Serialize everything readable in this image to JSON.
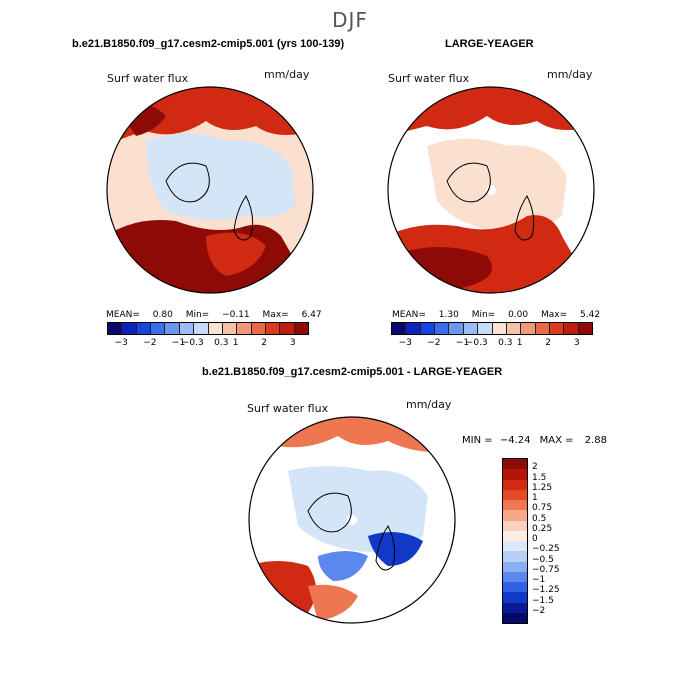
{
  "page": {
    "title": "DJF"
  },
  "panels": {
    "left": {
      "title": "b.e21.B1850.f09_g17.cesm2-cmip5.001 (yrs 100-139)",
      "variable": "Surf water flux",
      "units": "mm/day",
      "stats": {
        "mean_label": "MEAN=",
        "mean": "0.80",
        "min_label": "Min=",
        "min": "−0.11",
        "max_label": "Max=",
        "max": "6.47"
      }
    },
    "right": {
      "title": "LARGE-YEAGER",
      "variable": "Surf water flux",
      "units": "mm/day",
      "stats": {
        "mean_label": "MEAN=",
        "mean": "1.30",
        "min_label": "Min=",
        "min": "0.00",
        "max_label": "Max=",
        "max": "5.42"
      }
    },
    "diff": {
      "title": "b.e21.B1850.f09_g17.cesm2-cmip5.001 - LARGE-YEAGER",
      "variable": "Surf water flux",
      "units": "mm/day",
      "stats": {
        "min_label": "MIN =",
        "min": "−4.24",
        "max_label": "MAX =",
        "max": "2.88"
      }
    }
  },
  "colorbar_horizontal": {
    "colors": [
      "#08086e",
      "#0d22b8",
      "#1545e0",
      "#3a6ef0",
      "#6b96f2",
      "#9bbcf5",
      "#c6dcf8",
      "#fbe3d4",
      "#f6c3a8",
      "#f29a78",
      "#eb6a45",
      "#dd3a20",
      "#c01c10",
      "#8e0a06"
    ],
    "tick_labels": [
      "−3",
      "−2",
      "−1",
      "−0.3",
      "0.3",
      "1",
      "2",
      "3"
    ]
  },
  "colorbar_vertical": {
    "colors": [
      "#8e0a06",
      "#b51508",
      "#d02a12",
      "#e34a26",
      "#ee7650",
      "#f6a888",
      "#fad1bc",
      "#fdeee4",
      "#dbe8f8",
      "#b8cff4",
      "#8aaef0",
      "#5a88ec",
      "#2f62e4",
      "#1238c8",
      "#081a96",
      "#050a6a"
    ],
    "tick_labels": [
      "2",
      "1.5",
      "1.25",
      "1",
      "0.75",
      "0.5",
      "0.25",
      "0",
      "−0.25",
      "−0.5",
      "−0.75",
      "−1",
      "−1.25",
      "−1.5",
      "−2"
    ]
  },
  "map_colors": {
    "land_outline": "#000000",
    "light_blue": "#d4e5f8",
    "light_orange": "#fbe0d0",
    "dark_red": "#8e0a06",
    "red": "#d02a12",
    "orange": "#ee7650",
    "blue": "#1238c8",
    "mid_blue": "#5a88ec"
  }
}
